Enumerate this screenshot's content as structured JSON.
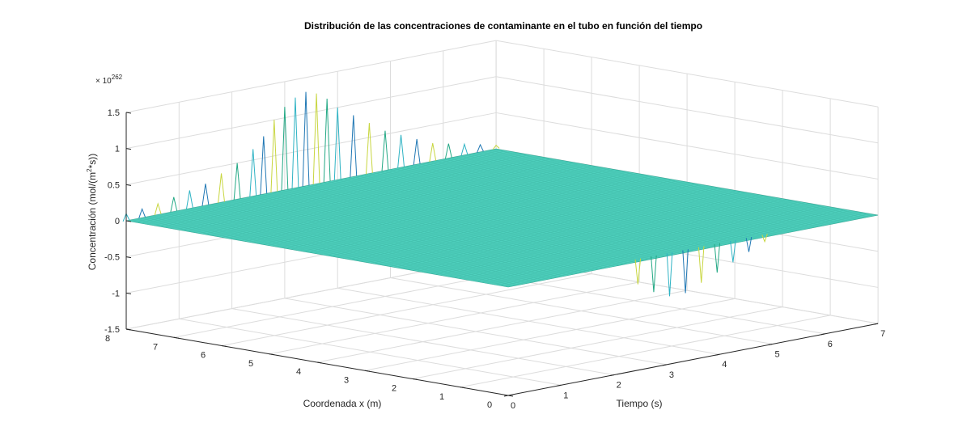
{
  "chart_data": {
    "type": "surface",
    "title": "Distribución de las concentraciones de contaminante en el tubo en función del tiempo",
    "xlabel": "Tiempo (s)",
    "ylabel": "Coordenada x (m)",
    "zlabel_main": "Concentración (mol/(m",
    "zlabel_sup": "2",
    "zlabel_tail": "*s))",
    "exponent_base": "× 10",
    "exponent_power": "262",
    "x_range": [
      0,
      7
    ],
    "y_range": [
      0,
      8
    ],
    "z_range": [
      -1.5,
      1.5
    ],
    "x_ticks": [
      "0",
      "1",
      "2",
      "3",
      "4",
      "5",
      "6",
      "7"
    ],
    "y_ticks": [
      "0",
      "1",
      "2",
      "3",
      "4",
      "5",
      "6",
      "7",
      "8"
    ],
    "z_ticks": [
      "-1.5",
      "-1",
      "-0.5",
      "0",
      "0.5",
      "1",
      "1.5"
    ],
    "z_tick_values": [
      -1.5,
      -1,
      -0.5,
      0,
      0.5,
      1,
      1.5
    ],
    "grid": true,
    "surface_color": "#4fd1be",
    "surface_edge_color": "#35a896",
    "spike_colors": [
      "#2fb3c4",
      "#1f77b4",
      "#c8d640",
      "#22a884"
    ],
    "instability_edge": {
      "description": "",
      "spikes": [
        {
          "t": 0.0,
          "z": 0.1
        },
        {
          "t": 0.3,
          "z": 0.12
        },
        {
          "t": 0.6,
          "z": 0.15
        },
        {
          "t": 0.9,
          "z": 0.2
        },
        {
          "t": 1.2,
          "z": 0.25
        },
        {
          "t": 1.5,
          "z": 0.3
        },
        {
          "t": 1.8,
          "z": 0.4
        },
        {
          "t": 2.1,
          "z": 0.5
        },
        {
          "t": 2.4,
          "z": 0.65
        },
        {
          "t": 2.6,
          "z": 0.8
        },
        {
          "t": 2.8,
          "z": 1.0
        },
        {
          "t": 3.0,
          "z": 1.15
        },
        {
          "t": 3.2,
          "z": 1.25
        },
        {
          "t": 3.4,
          "z": 1.3
        },
        {
          "t": 3.6,
          "z": 1.25
        },
        {
          "t": 3.8,
          "z": 1.15
        },
        {
          "t": 4.0,
          "z": 1.0
        },
        {
          "t": 4.3,
          "z": 0.85
        },
        {
          "t": 4.6,
          "z": 0.7
        },
        {
          "t": 4.9,
          "z": 0.55
        },
        {
          "t": 5.2,
          "z": 0.45
        },
        {
          "t": 5.5,
          "z": 0.35
        },
        {
          "t": 5.8,
          "z": 0.25
        },
        {
          "t": 6.1,
          "z": 0.2
        },
        {
          "t": 6.4,
          "z": 0.15
        },
        {
          "t": 6.7,
          "z": 0.1
        },
        {
          "t": 7.0,
          "z": 0.05
        }
      ],
      "negative_spikes": [
        {
          "t": 2.6,
          "z": -0.35
        },
        {
          "t": 2.9,
          "z": -0.5
        },
        {
          "t": 3.2,
          "z": -0.6
        },
        {
          "t": 3.5,
          "z": -0.6
        },
        {
          "t": 3.8,
          "z": -0.5
        },
        {
          "t": 4.1,
          "z": -0.4
        },
        {
          "t": 4.4,
          "z": -0.3
        },
        {
          "t": 4.7,
          "z": -0.2
        },
        {
          "t": 5.0,
          "z": -0.1
        }
      ]
    }
  }
}
